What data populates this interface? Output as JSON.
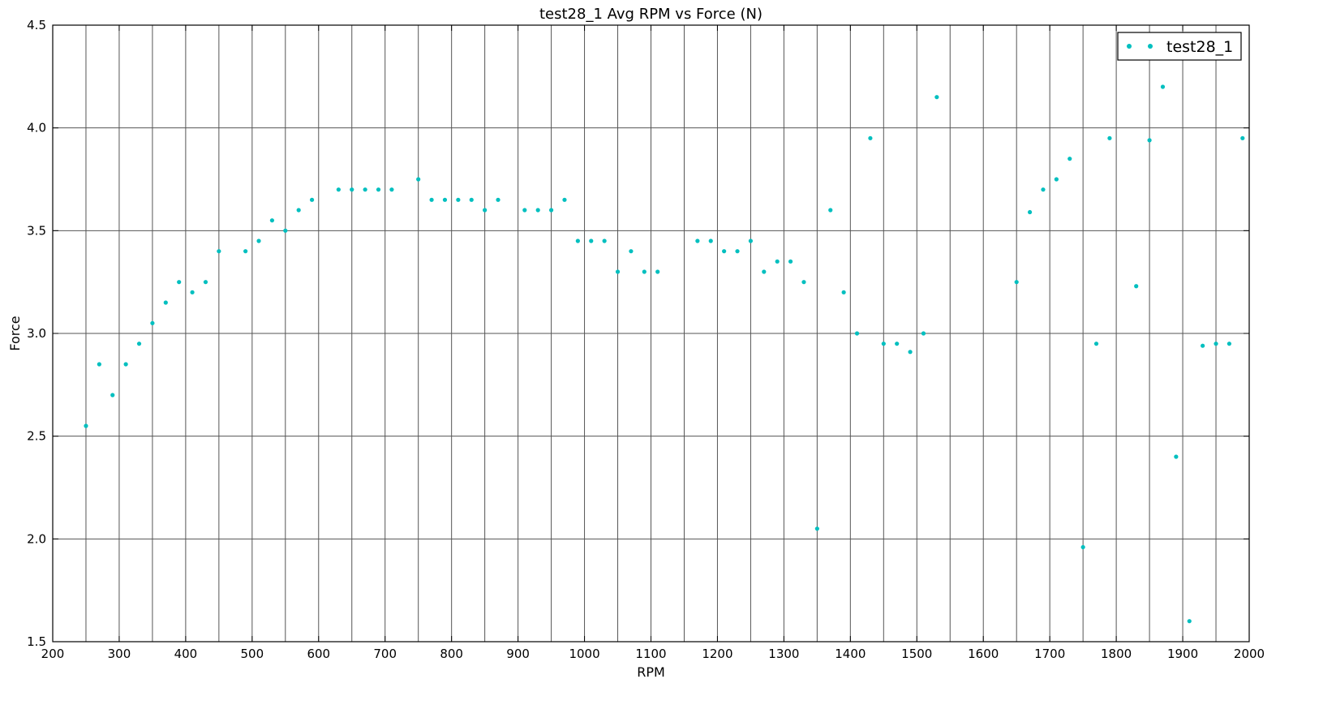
{
  "chart_data": {
    "type": "scatter",
    "title": "test28_1 Avg RPM vs Force (N)",
    "xlabel": "RPM",
    "ylabel": "Force",
    "xlim": [
      200,
      2000
    ],
    "ylim": [
      1.5,
      4.5
    ],
    "x_ticks": [
      200,
      300,
      400,
      500,
      600,
      700,
      800,
      900,
      1000,
      1100,
      1200,
      1300,
      1400,
      1500,
      1600,
      1700,
      1800,
      1900,
      2000
    ],
    "y_ticks": [
      "1.5",
      "2.0",
      "2.5",
      "3.0",
      "3.5",
      "4.0",
      "4.5"
    ],
    "grid": true,
    "legend_position": "top-right",
    "series": [
      {
        "name": "test28_1",
        "color": "#00bfbf",
        "marker": "dot",
        "points": [
          [
            250,
            2.55
          ],
          [
            270,
            2.85
          ],
          [
            290,
            2.7
          ],
          [
            310,
            2.85
          ],
          [
            330,
            2.95
          ],
          [
            350,
            3.05
          ],
          [
            370,
            3.15
          ],
          [
            390,
            3.25
          ],
          [
            410,
            3.2
          ],
          [
            430,
            3.25
          ],
          [
            450,
            3.4
          ],
          [
            490,
            3.4
          ],
          [
            510,
            3.45
          ],
          [
            530,
            3.55
          ],
          [
            550,
            3.5
          ],
          [
            570,
            3.6
          ],
          [
            590,
            3.65
          ],
          [
            630,
            3.7
          ],
          [
            650,
            3.7
          ],
          [
            670,
            3.7
          ],
          [
            690,
            3.7
          ],
          [
            710,
            3.7
          ],
          [
            750,
            3.75
          ],
          [
            770,
            3.65
          ],
          [
            790,
            3.65
          ],
          [
            810,
            3.65
          ],
          [
            830,
            3.65
          ],
          [
            850,
            3.6
          ],
          [
            870,
            3.65
          ],
          [
            910,
            3.6
          ],
          [
            930,
            3.6
          ],
          [
            950,
            3.6
          ],
          [
            970,
            3.65
          ],
          [
            990,
            3.45
          ],
          [
            1010,
            3.45
          ],
          [
            1030,
            3.45
          ],
          [
            1050,
            3.3
          ],
          [
            1070,
            3.4
          ],
          [
            1090,
            3.3
          ],
          [
            1110,
            3.3
          ],
          [
            1170,
            3.45
          ],
          [
            1190,
            3.45
          ],
          [
            1210,
            3.4
          ],
          [
            1230,
            3.4
          ],
          [
            1250,
            3.45
          ],
          [
            1270,
            3.3
          ],
          [
            1290,
            3.35
          ],
          [
            1310,
            3.35
          ],
          [
            1330,
            3.25
          ],
          [
            1350,
            2.05
          ],
          [
            1370,
            3.6
          ],
          [
            1390,
            3.2
          ],
          [
            1410,
            3.0
          ],
          [
            1430,
            3.95
          ],
          [
            1450,
            2.95
          ],
          [
            1470,
            2.95
          ],
          [
            1490,
            2.91
          ],
          [
            1510,
            3.0
          ],
          [
            1530,
            4.15
          ],
          [
            1650,
            3.25
          ],
          [
            1670,
            3.59
          ],
          [
            1690,
            3.7
          ],
          [
            1710,
            3.75
          ],
          [
            1730,
            3.85
          ],
          [
            1750,
            1.96
          ],
          [
            1770,
            2.95
          ],
          [
            1790,
            3.95
          ],
          [
            1830,
            3.23
          ],
          [
            1850,
            3.94
          ],
          [
            1870,
            4.2
          ],
          [
            1890,
            2.4
          ],
          [
            1910,
            1.6
          ],
          [
            1930,
            2.94
          ],
          [
            1950,
            2.95
          ],
          [
            1970,
            2.95
          ],
          [
            1990,
            3.95
          ]
        ]
      }
    ]
  }
}
